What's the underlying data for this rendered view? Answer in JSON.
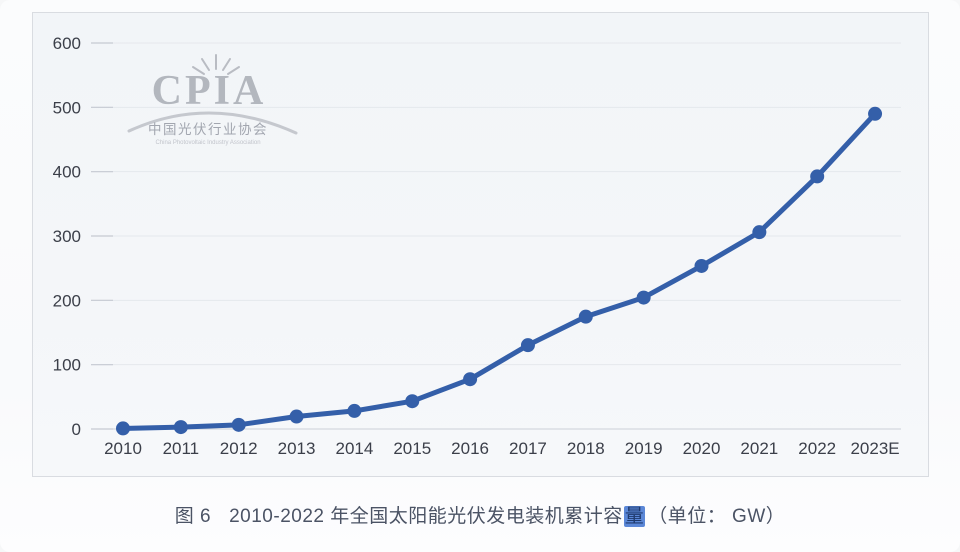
{
  "watermark": {
    "acronym": "CPIA",
    "org_name_cn": "中国光伏行业协会",
    "org_name_en": "China Photovoltaic Industry Association"
  },
  "caption": {
    "figure_label": "图 6",
    "title_text": "2010-2022 年全国太阳能光伏发电装机累计容",
    "highlighted_char": "量",
    "unit_text": "（单位： GW）"
  },
  "chart_data": {
    "type": "line",
    "title": "2010-2022 年全国太阳能光伏发电装机累计容量",
    "unit": "GW",
    "x": [
      "2010",
      "2011",
      "2012",
      "2013",
      "2014",
      "2015",
      "2016",
      "2017",
      "2018",
      "2019",
      "2020",
      "2021",
      "2022",
      "2023E"
    ],
    "series": [
      {
        "name": "全国太阳能光伏发电装机累计容量 (GW)",
        "values": [
          0.9,
          3,
          6.5,
          19.4,
          28.1,
          43.2,
          77.4,
          130.3,
          174.6,
          204.3,
          253.4,
          306,
          392.6,
          490
        ]
      }
    ],
    "ylim": [
      0,
      600
    ],
    "ytick_interval": 100,
    "yticks": [
      0,
      100,
      200,
      300,
      400,
      500,
      600
    ],
    "grid": true,
    "legend": "none",
    "marker": "circle",
    "colors": {
      "line": "#345fa9",
      "marker": "#345fa9",
      "grid": "#e5e8ed",
      "zero_line": "#cdd1d8",
      "tick": "#c6cad2",
      "axis_label": "#3b3f49",
      "watermark_gray": "#b3b7be"
    }
  }
}
